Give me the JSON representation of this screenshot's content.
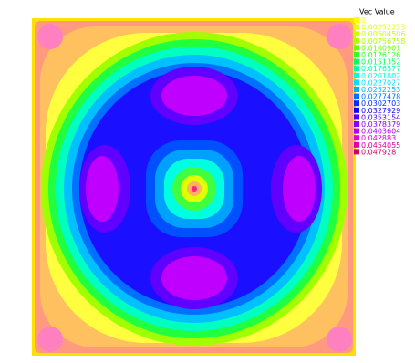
{
  "chart_data": {
    "type": "contour",
    "title": "Vec Value",
    "levels": [
      0,
      0.00252253,
      0.00504506,
      0.00756758,
      0.0100901,
      0.0126126,
      0.0151352,
      0.0176577,
      0.0201802,
      0.0227027,
      0.0252253,
      0.0277478,
      0.0302703,
      0.0327929,
      0.0353154,
      0.0378379,
      0.0403604,
      0.042883,
      0.0454055,
      0.047928
    ],
    "level_colors": [
      "#ffff00",
      "#e8ff00",
      "#d0ff00",
      "#b0ff00",
      "#70ff00",
      "#30ff20",
      "#00ff60",
      "#00ffa0",
      "#00ffe0",
      "#00e0ff",
      "#00b0ff",
      "#0070ff",
      "#0030ff",
      "#1000ff",
      "#5000ff",
      "#8800ff",
      "#b000ff",
      "#e000e0",
      "#e000a0",
      "#d00060"
    ]
  }
}
